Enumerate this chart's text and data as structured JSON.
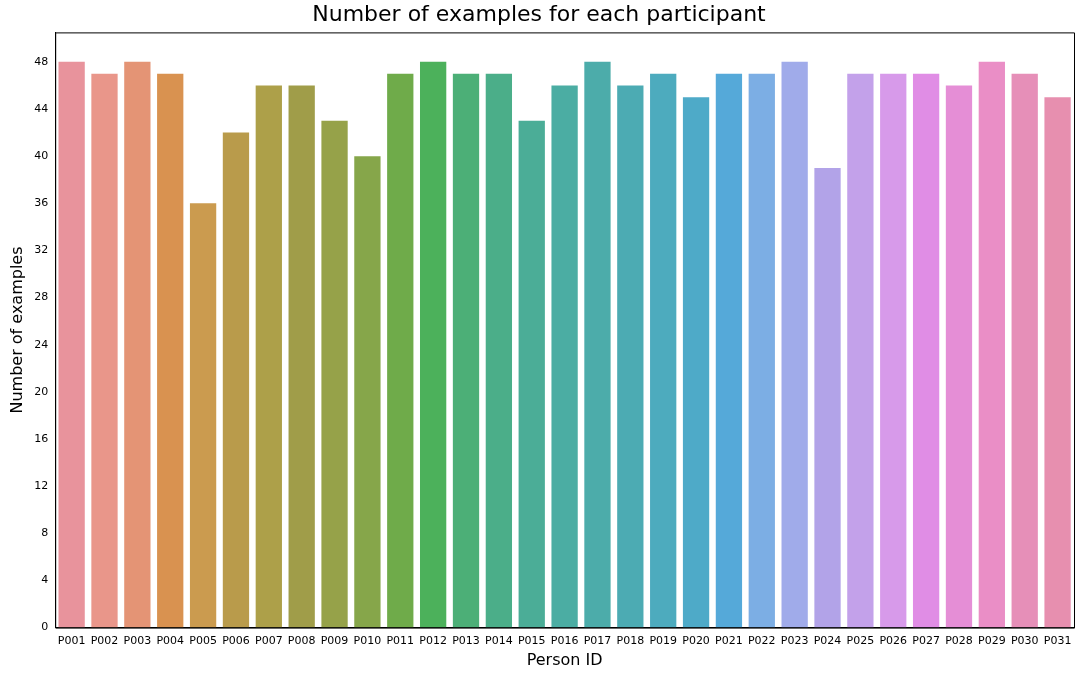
{
  "chart_data": {
    "type": "bar",
    "title": "Number of examples for each participant",
    "xlabel": "Person ID",
    "ylabel": "Number of examples",
    "categories": [
      "P001",
      "P002",
      "P003",
      "P004",
      "P005",
      "P006",
      "P007",
      "P008",
      "P009",
      "P010",
      "P011",
      "P012",
      "P013",
      "P014",
      "P015",
      "P016",
      "P017",
      "P018",
      "P019",
      "P020",
      "P021",
      "P022",
      "P023",
      "P024",
      "P025",
      "P026",
      "P027",
      "P028",
      "P029",
      "P030",
      "P031"
    ],
    "values": [
      48,
      47,
      48,
      47,
      36,
      42,
      46,
      46,
      43,
      40,
      47,
      48,
      47,
      47,
      43,
      46,
      48,
      46,
      47,
      45,
      47,
      47,
      48,
      39,
      47,
      47,
      47,
      46,
      48,
      47,
      45
    ],
    "colors": [
      "#e8939c",
      "#e9968a",
      "#e49475",
      "#d99250",
      "#cb9b4f",
      "#b99b4b",
      "#ada049",
      "#a09d49",
      "#96a249",
      "#86a64a",
      "#6fab4a",
      "#4cb15b",
      "#4caf77",
      "#4bae89",
      "#4bad97",
      "#4bada3",
      "#4cacaa",
      "#4cabb3",
      "#4dabbe",
      "#4eaac8",
      "#55a9d9",
      "#7caee4",
      "#a0abea",
      "#b2a3e8",
      "#c3a1ea",
      "#d79aea",
      "#e08de5",
      "#e58ed6",
      "#ea8ec6",
      "#e68fb8",
      "#e78faf"
    ],
    "ylim": [
      0,
      50.5
    ],
    "yticks": [
      0,
      4,
      8,
      12,
      16,
      20,
      24,
      28,
      32,
      36,
      40,
      44,
      48
    ],
    "grid": false,
    "legend": false
  }
}
